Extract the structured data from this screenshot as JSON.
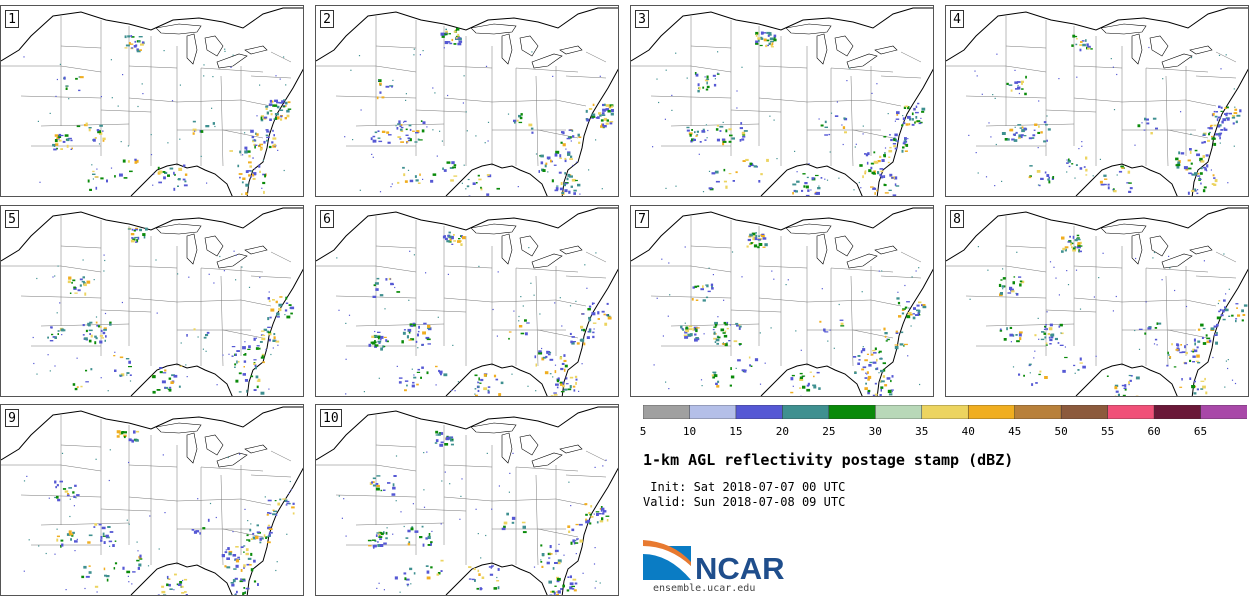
{
  "panels": [
    {
      "label": "1"
    },
    {
      "label": "2"
    },
    {
      "label": "3"
    },
    {
      "label": "4"
    },
    {
      "label": "5"
    },
    {
      "label": "6"
    },
    {
      "label": "7"
    },
    {
      "label": "8"
    },
    {
      "label": "9"
    },
    {
      "label": "10"
    }
  ],
  "colorbar": {
    "ticks": [
      "5",
      "10",
      "15",
      "20",
      "25",
      "30",
      "35",
      "40",
      "45",
      "50",
      "55",
      "60",
      "65"
    ],
    "colors": [
      "#a0a0a0",
      "#b4bfe8",
      "#5558d4",
      "#3f9090",
      "#0a8a0a",
      "#b8d8b8",
      "#ecd460",
      "#f0ae20",
      "#b8803a",
      "#8c5a3c",
      "#f05078",
      "#6a1838",
      "#a848a8"
    ]
  },
  "title": "1-km AGL reflectivity postage stamp (dBZ)",
  "init_line": " Init: Sat 2018-07-07 00 UTC",
  "valid_line": "Valid: Sun 2018-07-08 09 UTC",
  "logo": {
    "text": "NCAR",
    "color": "#1f4e8c",
    "accent": "#0a7cc4"
  },
  "url": "ensemble.ucar.edu"
}
